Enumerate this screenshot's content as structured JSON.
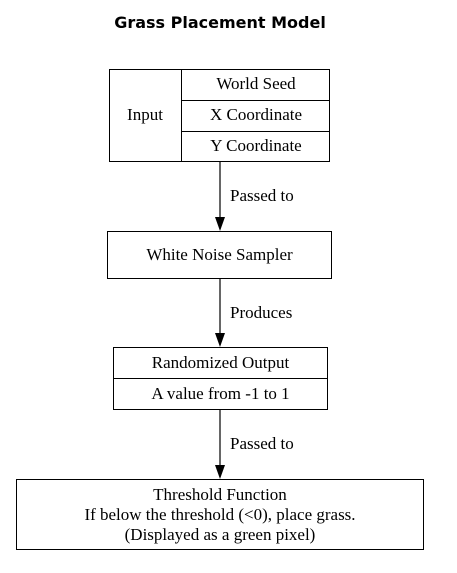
{
  "title": "Grass Placement Model",
  "input": {
    "label": "Input",
    "fields": [
      "World Seed",
      "X Coordinate",
      "Y Coordinate"
    ]
  },
  "edges": [
    "Passed to",
    "Produces",
    "Passed to"
  ],
  "sampler": {
    "label": "White Noise Sampler"
  },
  "output": {
    "title": "Randomized Output",
    "value": "A value from -1 to 1"
  },
  "threshold": {
    "lines": [
      "Threshold Function",
      "If below the threshold (<0), place grass.",
      "(Displayed as a green pixel)"
    ]
  }
}
